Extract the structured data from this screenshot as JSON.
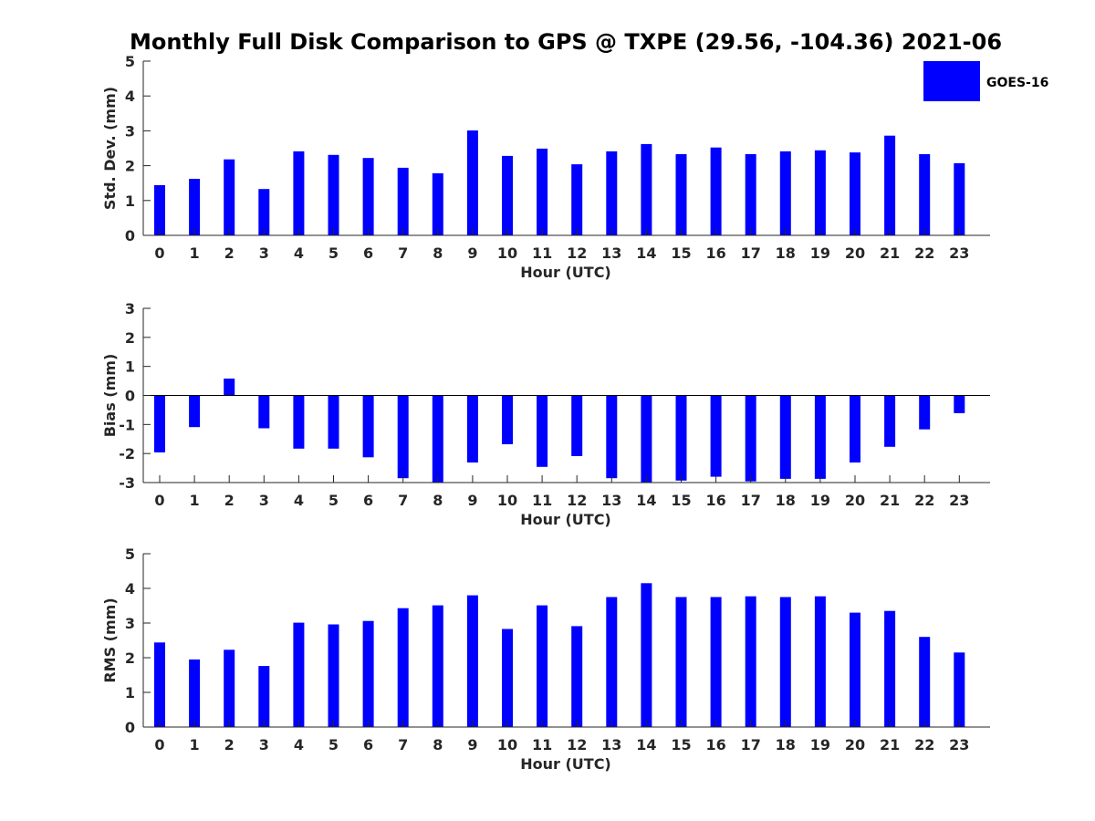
{
  "figure": {
    "title": "Monthly Full Disk Comparison to GPS @ TXPE (29.56, -104.36) 2021-06",
    "legend_label": "GOES-16",
    "bar_color": "#0000ff"
  },
  "chart_data": [
    {
      "type": "bar",
      "title": "",
      "xlabel": "Hour (UTC)",
      "ylabel": "Std. Dev. (mm)",
      "ylim": [
        0,
        5
      ],
      "yticks": [
        0,
        1,
        2,
        3,
        4,
        5
      ],
      "categories": [
        "0",
        "1",
        "2",
        "3",
        "4",
        "5",
        "6",
        "7",
        "8",
        "9",
        "10",
        "11",
        "12",
        "13",
        "14",
        "15",
        "16",
        "17",
        "18",
        "19",
        "20",
        "21",
        "22",
        "23"
      ],
      "series": [
        {
          "name": "GOES-16",
          "values": [
            1.44,
            1.62,
            2.18,
            1.33,
            2.41,
            2.31,
            2.22,
            1.94,
            1.78,
            3.01,
            2.28,
            2.49,
            2.04,
            2.41,
            2.62,
            2.33,
            2.52,
            2.33,
            2.41,
            2.44,
            2.38,
            2.86,
            2.33,
            2.07
          ]
        }
      ],
      "legend": "top-right",
      "grid": false
    },
    {
      "type": "bar",
      "title": "",
      "xlabel": "Hour (UTC)",
      "ylabel": "Bias (mm)",
      "ylim": [
        -3,
        3
      ],
      "yticks": [
        -3,
        -2,
        -1,
        0,
        1,
        2,
        3
      ],
      "categories": [
        "0",
        "1",
        "2",
        "3",
        "4",
        "5",
        "6",
        "7",
        "8",
        "9",
        "10",
        "11",
        "12",
        "13",
        "14",
        "15",
        "16",
        "17",
        "18",
        "19",
        "20",
        "21",
        "22",
        "23"
      ],
      "series": [
        {
          "name": "GOES-16",
          "values": [
            -1.96,
            -1.09,
            0.58,
            -1.13,
            -1.83,
            -1.83,
            -2.13,
            -2.85,
            -3.0,
            -2.31,
            -1.68,
            -2.46,
            -2.09,
            -2.85,
            -3.0,
            -2.93,
            -2.8,
            -2.96,
            -2.87,
            -2.87,
            -2.31,
            -1.77,
            -1.17,
            -0.61
          ]
        }
      ],
      "grid": false
    },
    {
      "type": "bar",
      "title": "",
      "xlabel": "Hour (UTC)",
      "ylabel": "RMS (mm)",
      "ylim": [
        0,
        5
      ],
      "yticks": [
        0,
        1,
        2,
        3,
        4,
        5
      ],
      "categories": [
        "0",
        "1",
        "2",
        "3",
        "4",
        "5",
        "6",
        "7",
        "8",
        "9",
        "10",
        "11",
        "12",
        "13",
        "14",
        "15",
        "16",
        "17",
        "18",
        "19",
        "20",
        "21",
        "22",
        "23"
      ],
      "series": [
        {
          "name": "GOES-16",
          "values": [
            2.44,
            1.95,
            2.23,
            1.76,
            3.01,
            2.96,
            3.06,
            3.43,
            3.51,
            3.8,
            2.83,
            3.51,
            2.91,
            3.75,
            4.15,
            3.75,
            3.75,
            3.77,
            3.75,
            3.77,
            3.3,
            3.35,
            2.6,
            2.15
          ]
        }
      ],
      "grid": false
    }
  ]
}
